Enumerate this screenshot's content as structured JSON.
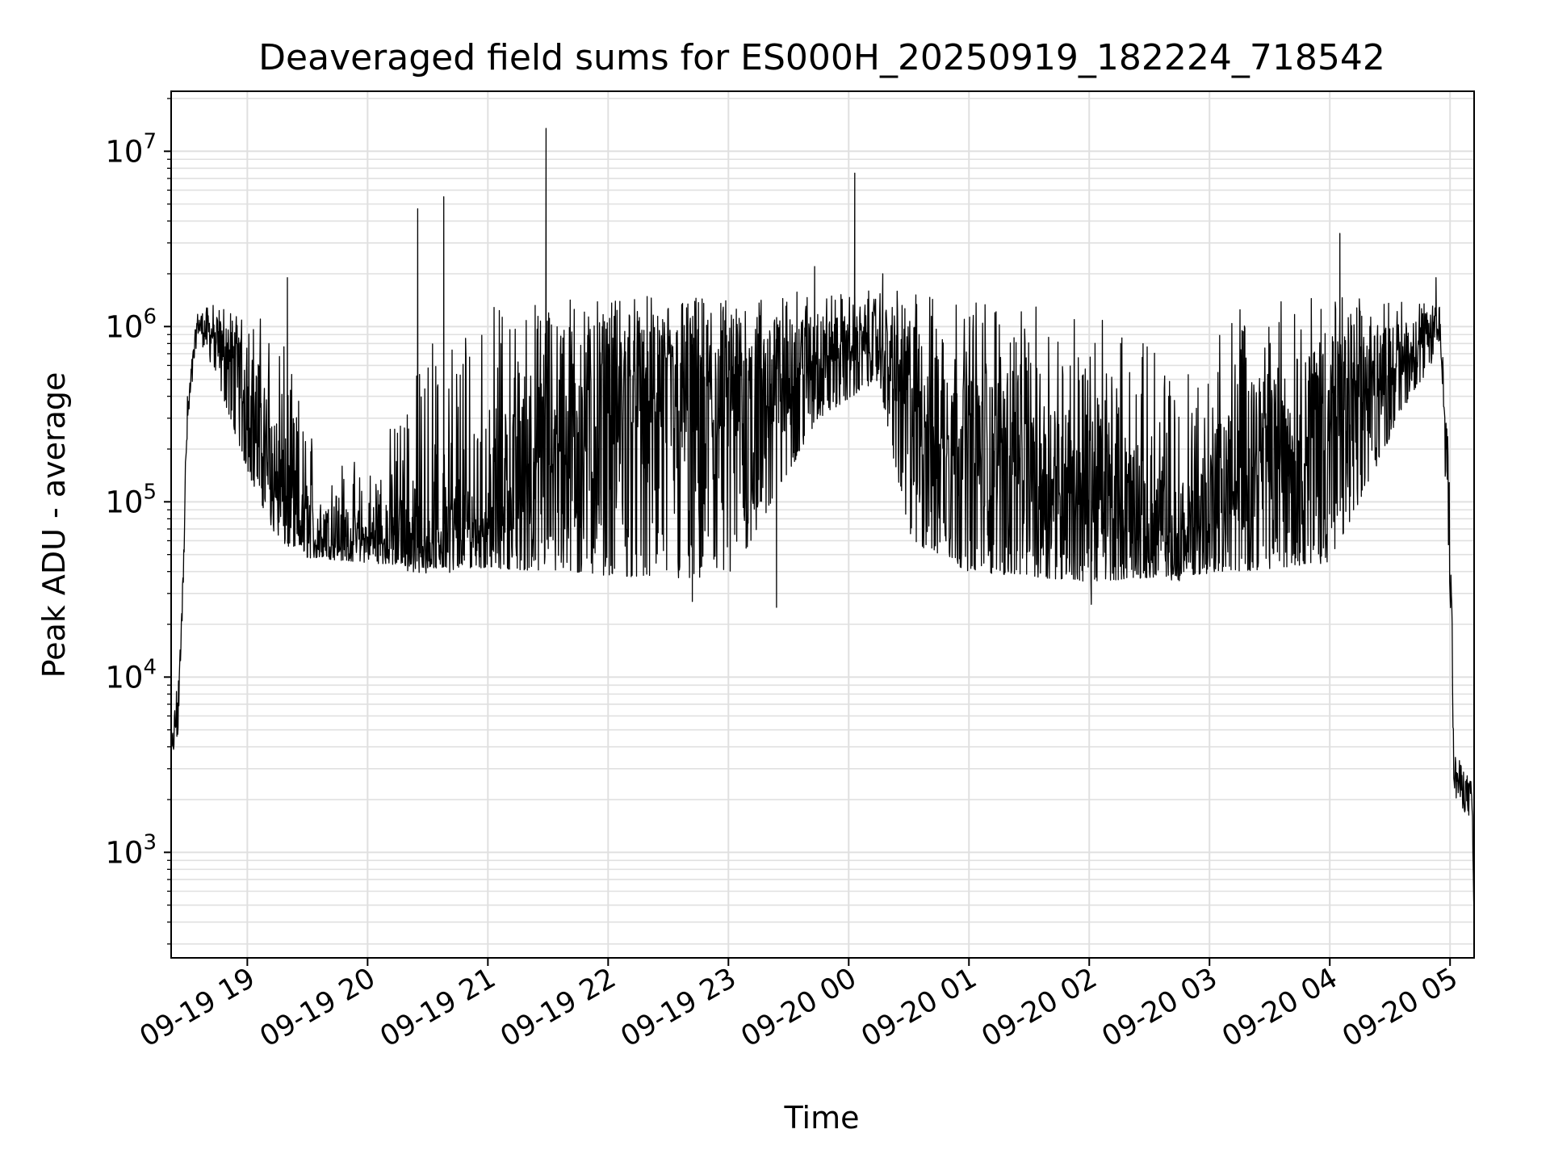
{
  "chart_data": {
    "type": "line",
    "title": "Deaveraged field sums for ES000H_20250919_182224_718542",
    "xlabel": "Time",
    "ylabel": "Peak ADU - average",
    "yscale": "log",
    "ylim": [
      250,
      22000000
    ],
    "xlim": [
      "2025-09-19 18:22",
      "2025-09-20 05:12"
    ],
    "grid": true,
    "line_color": "#000000",
    "grid_color": "#e0e0e0",
    "x_ticks": [
      {
        "time": "2025-09-19 19:00",
        "label": "09-19 19"
      },
      {
        "time": "2025-09-19 20:00",
        "label": "09-19 20"
      },
      {
        "time": "2025-09-19 21:00",
        "label": "09-19 21"
      },
      {
        "time": "2025-09-19 22:00",
        "label": "09-19 22"
      },
      {
        "time": "2025-09-19 23:00",
        "label": "09-19 23"
      },
      {
        "time": "2025-09-20 00:00",
        "label": "09-20 00"
      },
      {
        "time": "2025-09-20 01:00",
        "label": "09-20 01"
      },
      {
        "time": "2025-09-20 02:00",
        "label": "09-20 02"
      },
      {
        "time": "2025-09-20 03:00",
        "label": "09-20 03"
      },
      {
        "time": "2025-09-20 04:00",
        "label": "09-20 04"
      },
      {
        "time": "2025-09-20 05:00",
        "label": "09-20 05"
      }
    ],
    "y_ticks": [
      {
        "value": 1000,
        "base": "10",
        "exp": "3"
      },
      {
        "value": 10000,
        "base": "10",
        "exp": "4"
      },
      {
        "value": 100000,
        "base": "10",
        "exp": "5"
      },
      {
        "value": 1000000,
        "base": "10",
        "exp": "6"
      },
      {
        "value": 10000000,
        "base": "10",
        "exp": "7"
      }
    ],
    "envelope": [
      {
        "t": "2025-09-19 18:22",
        "floor": 3000,
        "typical": 3500,
        "top": 4000
      },
      {
        "t": "2025-09-19 18:26",
        "floor": 5000,
        "typical": 8000,
        "top": 14000
      },
      {
        "t": "2025-09-19 18:30",
        "floor": 200000,
        "typical": 300000,
        "top": 400000
      },
      {
        "t": "2025-09-19 18:35",
        "floor": 900000,
        "typical": 1000000,
        "top": 1200000
      },
      {
        "t": "2025-09-19 18:45",
        "floor": 500000,
        "typical": 900000,
        "top": 1400000
      },
      {
        "t": "2025-09-19 19:00",
        "floor": 150000,
        "typical": 500000,
        "top": 1300000
      },
      {
        "t": "2025-09-19 19:15",
        "floor": 60000,
        "typical": 150000,
        "top": 1000000
      },
      {
        "t": "2025-09-19 19:30",
        "floor": 48000,
        "typical": 70000,
        "top": 300000
      },
      {
        "t": "2025-09-19 20:00",
        "floor": 45000,
        "typical": 65000,
        "top": 150000
      },
      {
        "t": "2025-09-19 20:30",
        "floor": 42000,
        "typical": 70000,
        "top": 800000
      },
      {
        "t": "2025-09-19 21:00",
        "floor": 42000,
        "typical": 100000,
        "top": 1300000
      },
      {
        "t": "2025-09-19 21:30",
        "floor": 40000,
        "typical": 300000,
        "top": 1500000
      },
      {
        "t": "2025-09-19 22:00",
        "floor": 38000,
        "typical": 500000,
        "top": 1500000
      },
      {
        "t": "2025-09-19 23:00",
        "floor": 35000,
        "typical": 500000,
        "top": 1500000
      },
      {
        "t": "2025-09-19 23:45",
        "floor": 300000,
        "typical": 800000,
        "top": 1600000
      },
      {
        "t": "2025-09-20 00:15",
        "floor": 500000,
        "typical": 900000,
        "top": 1600000
      },
      {
        "t": "2025-09-20 00:30",
        "floor": 60000,
        "typical": 500000,
        "top": 1600000
      },
      {
        "t": "2025-09-20 01:00",
        "floor": 40000,
        "typical": 300000,
        "top": 1500000
      },
      {
        "t": "2025-09-20 02:00",
        "floor": 35000,
        "typical": 150000,
        "top": 1200000
      },
      {
        "t": "2025-09-20 02:45",
        "floor": 38000,
        "typical": 60000,
        "top": 700000
      },
      {
        "t": "2025-09-20 03:15",
        "floor": 40000,
        "typical": 200000,
        "top": 1400000
      },
      {
        "t": "2025-09-20 04:00",
        "floor": 45000,
        "typical": 400000,
        "top": 1500000
      },
      {
        "t": "2025-09-20 04:40",
        "floor": 400000,
        "typical": 800000,
        "top": 1400000
      },
      {
        "t": "2025-09-20 04:55",
        "floor": 700000,
        "typical": 1000000,
        "top": 1300000
      },
      {
        "t": "2025-09-20 05:00",
        "floor": 30000,
        "typical": 100000,
        "top": 300000
      },
      {
        "t": "2025-09-20 05:02",
        "floor": 2000,
        "typical": 3000,
        "top": 3800
      },
      {
        "t": "2025-09-20 05:11",
        "floor": 1500,
        "typical": 2000,
        "top": 2500
      },
      {
        "t": "2025-09-20 05:12",
        "floor": 300,
        "typical": 400,
        "top": 500
      }
    ],
    "spikes": [
      {
        "t": "2025-09-19 20:25",
        "value": 4700000
      },
      {
        "t": "2025-09-19 20:38",
        "value": 5500000
      },
      {
        "t": "2025-09-19 21:29",
        "value": 13500000
      },
      {
        "t": "2025-09-20 00:03",
        "value": 7500000
      },
      {
        "t": "2025-09-20 04:05",
        "value": 3400000
      },
      {
        "t": "2025-09-19 19:20",
        "value": 1900000
      },
      {
        "t": "2025-09-19 23:43",
        "value": 2200000
      },
      {
        "t": "2025-09-20 00:17",
        "value": 2000000
      },
      {
        "t": "2025-09-20 04:53",
        "value": 1900000
      }
    ],
    "dips": [
      {
        "t": "2025-09-19 22:42",
        "value": 27000
      },
      {
        "t": "2025-09-19 23:24",
        "value": 25000
      },
      {
        "t": "2025-09-20 02:01",
        "value": 26000
      }
    ]
  }
}
